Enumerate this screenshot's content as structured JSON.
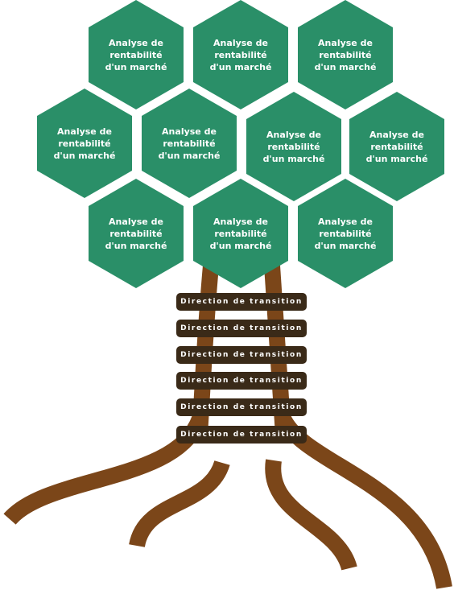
{
  "colors": {
    "hexagon": "#2a8f68",
    "trunk": "#7b4619",
    "band": "#3a2a18",
    "text": "#ffffff"
  },
  "hexagons": [
    "Analyse de\nrentabilité\nd'un marché",
    "Analyse de\nrentabilité\nd'un marché",
    "Analyse de\nrentabilité\nd'un marché",
    "Analyse de\nrentabilité\nd'un marché",
    "Analyse de\nrentabilité\nd'un marché",
    "Analyse de\nrentabilité\nd'un marché",
    "Analyse de\nrentabilité\nd'un marché",
    "Analyse de\nrentabilité\nd'un marché",
    "Analyse de\nrentabilité\nd'un marché",
    "Analyse de\nrentabilité\nd'un marché"
  ],
  "bands": [
    "Direction de transition",
    "Direction de transition",
    "Direction de transition",
    "Direction de transition",
    "Direction de transition",
    "Direction de transition"
  ]
}
